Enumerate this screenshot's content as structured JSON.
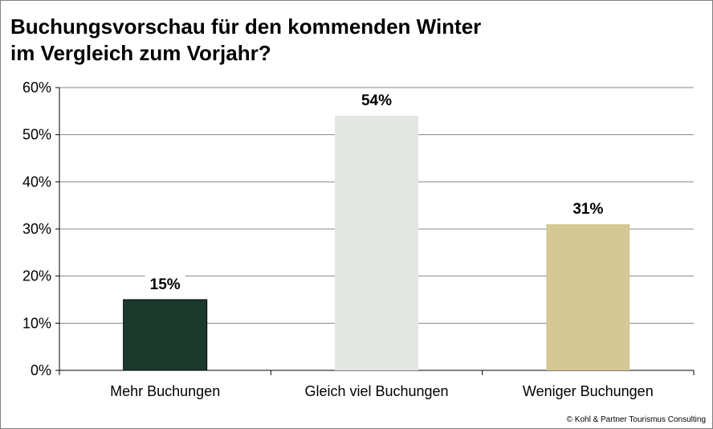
{
  "chart_data": {
    "type": "bar",
    "title_lines": [
      "Buchungsvorschau für den kommenden Winter",
      "im Vergleich zum Vorjahr?"
    ],
    "categories": [
      "Mehr Buchungen",
      "Gleich viel Buchungen",
      "Weniger Buchungen"
    ],
    "values": [
      15,
      54,
      31
    ],
    "data_labels": [
      "15%",
      "54%",
      "31%"
    ],
    "colors": [
      "#1b3a2d",
      "#e3e6e3",
      "#d4c894"
    ],
    "ylim": [
      0,
      60
    ],
    "yticks": [
      0,
      10,
      20,
      30,
      40,
      50,
      60
    ],
    "ytick_labels": [
      "0%",
      "10%",
      "20%",
      "30%",
      "40%",
      "50%",
      "60%"
    ],
    "grid": true,
    "gridline_color": "#878787"
  },
  "footer": "© Kohl & Partner Tourismus Consulting"
}
